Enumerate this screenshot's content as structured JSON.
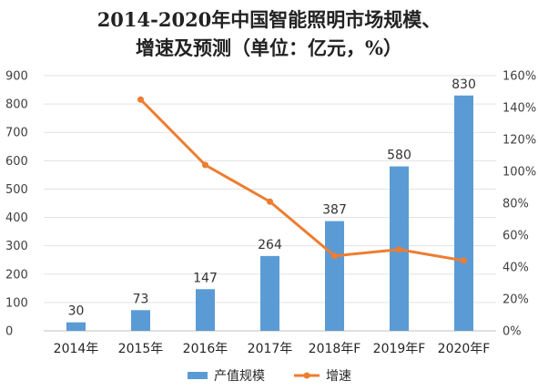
{
  "chart_data": {
    "type": "bar",
    "title_lines": [
      "2014-2020年中国智能照明市场规模、",
      "增速及预测（单位：亿元，%）"
    ],
    "categories": [
      "2014年",
      "2015年",
      "2016年",
      "2017年",
      "2018年F",
      "2019年F",
      "2020年F"
    ],
    "series": [
      {
        "name": "产值规模",
        "type": "bar",
        "axis": "left",
        "color": "#5b9bd5",
        "values": [
          30,
          73,
          147,
          264,
          387,
          580,
          830
        ],
        "labels": [
          "30",
          "73",
          "147",
          "264",
          "387",
          "580",
          "830"
        ]
      },
      {
        "name": "增速",
        "type": "line",
        "axis": "right",
        "color": "#ed7d31",
        "values": [
          null,
          145,
          104,
          81,
          47,
          51,
          44
        ]
      }
    ],
    "y_left": {
      "ylim": [
        0,
        900
      ],
      "ticks": [
        "0",
        "100",
        "200",
        "300",
        "400",
        "500",
        "600",
        "700",
        "800",
        "900"
      ]
    },
    "y_right": {
      "ylim": [
        0,
        160
      ],
      "ticks": [
        "0%",
        "20%",
        "40%",
        "60%",
        "80%",
        "100%",
        "120%",
        "140%",
        "160%"
      ]
    },
    "grid": true,
    "legend_position": "bottom"
  }
}
